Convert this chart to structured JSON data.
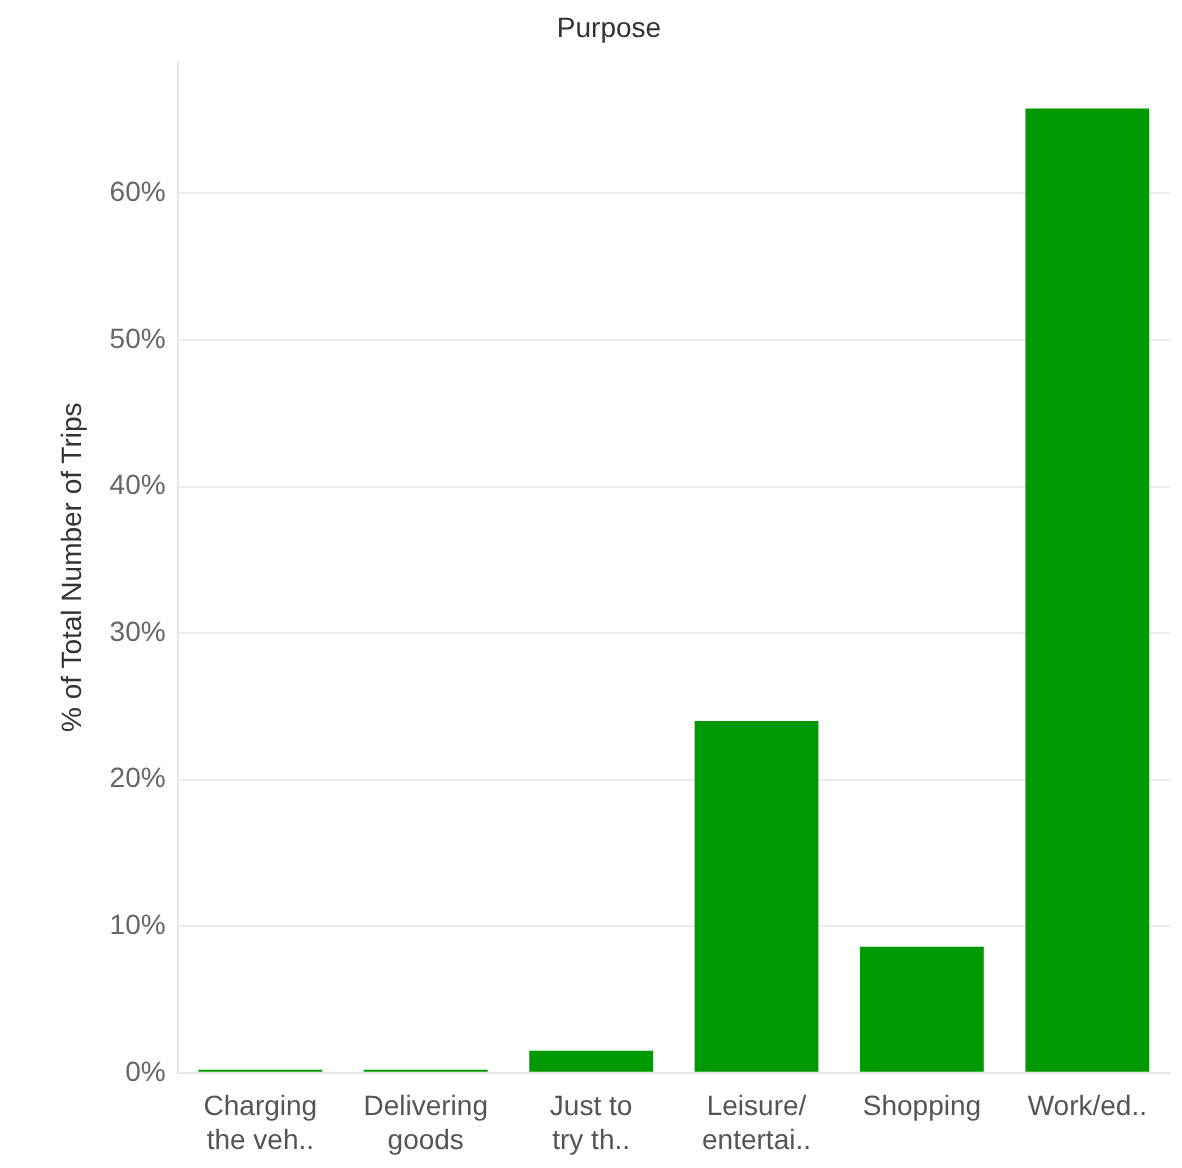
{
  "chart_data": {
    "type": "bar",
    "title": "Purpose",
    "ylabel": "% of Total Number of Trips",
    "categories": [
      "Charging the veh..",
      "Delivering goods",
      "Just to try th..",
      "Leisure/ entertai..",
      "Shopping",
      "Work/ed.."
    ],
    "values": [
      0.2,
      0.2,
      1.5,
      24.0,
      8.6,
      65.8
    ],
    "color": "#009900",
    "ylim": [
      0,
      69
    ],
    "yticks": [
      {
        "value": 0,
        "label": "0%"
      },
      {
        "value": 10,
        "label": "10%"
      },
      {
        "value": 20,
        "label": "20%"
      },
      {
        "value": 30,
        "label": "30%"
      },
      {
        "value": 40,
        "label": "40%"
      },
      {
        "value": 50,
        "label": "50%"
      },
      {
        "value": 60,
        "label": "60%"
      }
    ],
    "grid": "y",
    "legend": false
  }
}
